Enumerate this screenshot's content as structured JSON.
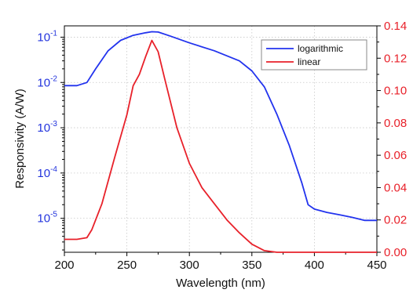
{
  "chart_data": {
    "type": "line",
    "title": "",
    "xlabel": "Wavelength (nm)",
    "ylabel_left": "Responsivity (A/W)",
    "ylabel_right": "",
    "xlim": [
      200,
      450
    ],
    "ylim_left_log10": [
      -5.75,
      -0.75
    ],
    "ylim_right": [
      0.0,
      0.14
    ],
    "x_ticks": [
      "200",
      "250",
      "300",
      "350",
      "400",
      "450"
    ],
    "x_tick_values": [
      200,
      250,
      300,
      350,
      400,
      450
    ],
    "y_left_ticks": [
      {
        "base": "10",
        "exp": "-5",
        "value": -5
      },
      {
        "base": "10",
        "exp": "-4",
        "value": -4
      },
      {
        "base": "10",
        "exp": "-3",
        "value": -3
      },
      {
        "base": "10",
        "exp": "-2",
        "value": -2
      },
      {
        "base": "10",
        "exp": "-1",
        "value": -1
      }
    ],
    "y_right_ticks": [
      "0.00",
      "0.02",
      "0.04",
      "0.06",
      "0.08",
      "0.10",
      "0.12",
      "0.14"
    ],
    "y_right_tick_values": [
      0.0,
      0.02,
      0.04,
      0.06,
      0.08,
      0.1,
      0.12,
      0.14
    ],
    "grid": true,
    "legend_position": "top-right",
    "series": [
      {
        "name": "logarithmic",
        "axis": "left-log",
        "color": "#2233ee",
        "x": [
          200,
          210,
          218,
          225,
          235,
          245,
          255,
          265,
          270,
          275,
          285,
          300,
          320,
          340,
          350,
          360,
          370,
          380,
          390,
          395,
          400,
          410,
          420,
          430,
          440,
          450
        ],
        "y": [
          0.0085,
          0.0085,
          0.01,
          0.02,
          0.05,
          0.085,
          0.11,
          0.125,
          0.132,
          0.13,
          0.105,
          0.075,
          0.05,
          0.03,
          0.018,
          0.008,
          0.002,
          0.0004,
          6e-05,
          2e-05,
          1.6e-05,
          1.35e-05,
          1.2e-05,
          1.05e-05,
          9e-06,
          9e-06
        ]
      },
      {
        "name": "linear",
        "axis": "right",
        "color": "#e8212a",
        "x": [
          200,
          210,
          218,
          222,
          230,
          240,
          250,
          255,
          260,
          265,
          270,
          275,
          280,
          290,
          300,
          310,
          320,
          330,
          340,
          350,
          360,
          370,
          380,
          390,
          400,
          450
        ],
        "y": [
          0.008,
          0.008,
          0.009,
          0.014,
          0.03,
          0.058,
          0.085,
          0.103,
          0.11,
          0.121,
          0.131,
          0.124,
          0.108,
          0.077,
          0.055,
          0.04,
          0.03,
          0.02,
          0.012,
          0.005,
          0.001,
          0.0,
          0.0,
          0.0,
          0.0,
          0.0
        ]
      }
    ]
  }
}
